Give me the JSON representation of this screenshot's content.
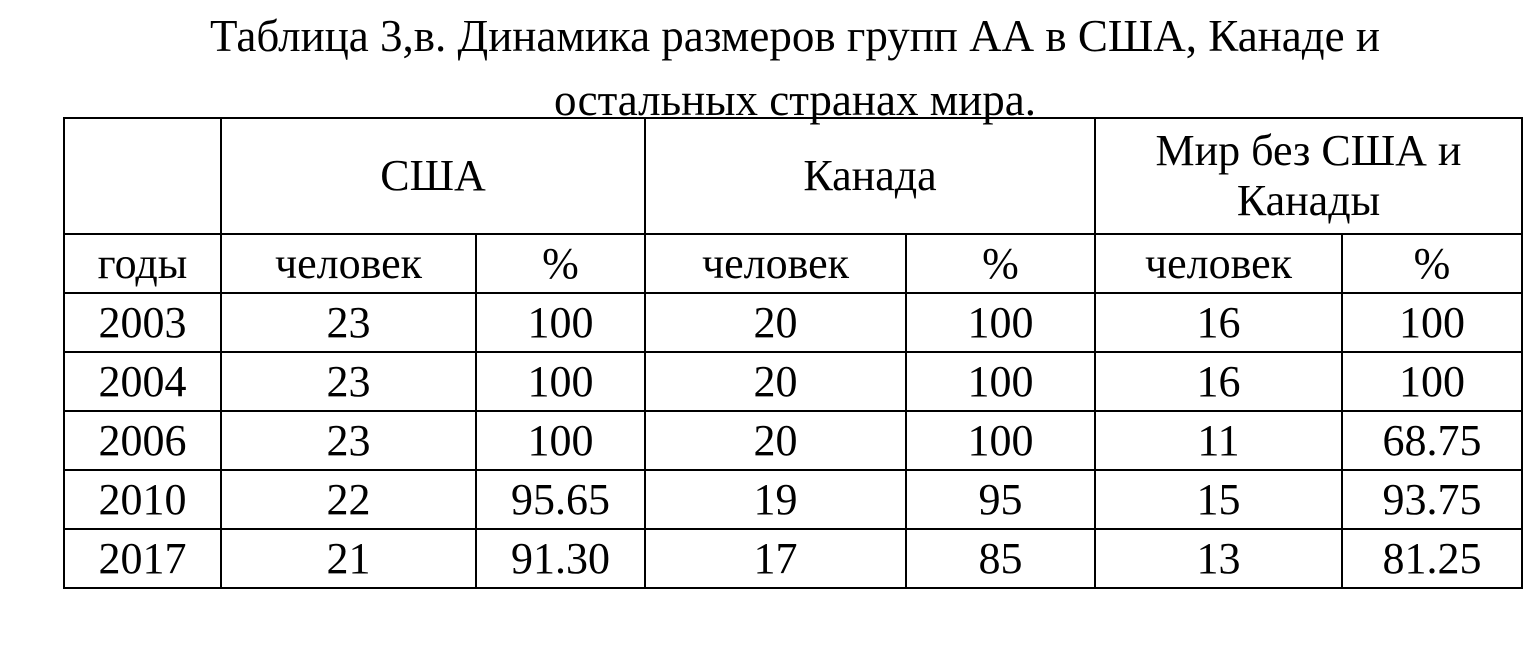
{
  "title": {
    "line1": "Таблица 3,в. Динамика размеров групп АА в США, Канаде и",
    "line2": "остальных странах мира."
  },
  "table": {
    "groups": [
      "",
      "США",
      "Канада",
      "Мир без США и Канады"
    ],
    "subheaders": [
      "годы",
      "человек",
      "%",
      "человек",
      "%",
      "человек",
      "%"
    ],
    "rows": [
      [
        "2003",
        "23",
        "100",
        "20",
        "100",
        "16",
        "100"
      ],
      [
        "2004",
        "23",
        "100",
        "20",
        "100",
        "16",
        "100"
      ],
      [
        "2006",
        "23",
        "100",
        "20",
        "100",
        "11",
        "68.75"
      ],
      [
        "2010",
        "22",
        "95.65",
        "19",
        "95",
        "15",
        "93.75"
      ],
      [
        "2017",
        "21",
        "91.30",
        "17",
        "85",
        "13",
        "81.25"
      ]
    ]
  }
}
